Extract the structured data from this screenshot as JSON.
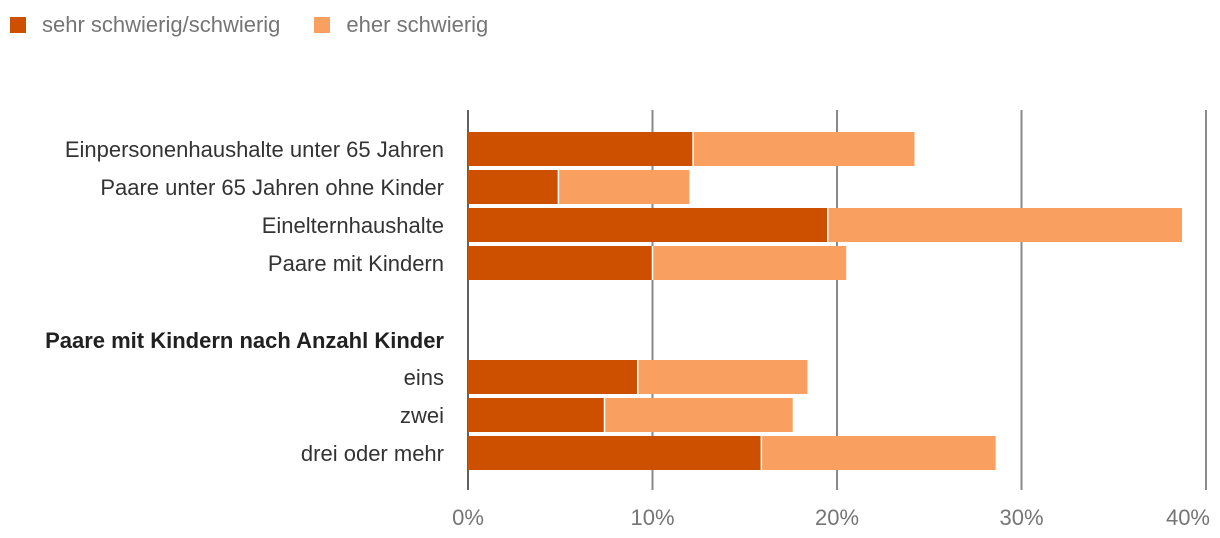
{
  "chart_data": {
    "type": "bar",
    "orientation": "horizontal",
    "stacked": true,
    "legend_position": "top-left",
    "grid": true,
    "xlim": [
      0,
      40
    ],
    "xticks": [
      "0%",
      "10%",
      "20%",
      "30%",
      "40%"
    ],
    "group_header": "Paare mit Kindern nach Anzahl Kinder",
    "categories": [
      "Einpersonenhaushalte unter 65 Jahren",
      "Paare unter 65 Jahren ohne Kinder",
      "Einelternhaushalte",
      "Paare mit Kindern",
      "eins",
      "zwei",
      "drei oder mehr"
    ],
    "series": [
      {
        "name": "sehr schwierig/schwierig",
        "color": "#cc5000",
        "values": [
          12.2,
          4.9,
          19.5,
          10.0,
          9.2,
          7.4,
          15.9
        ]
      },
      {
        "name": "eher schwierig",
        "color": "#f9a060",
        "values": [
          12.0,
          7.1,
          19.2,
          10.5,
          9.2,
          10.2,
          12.7
        ]
      }
    ]
  }
}
